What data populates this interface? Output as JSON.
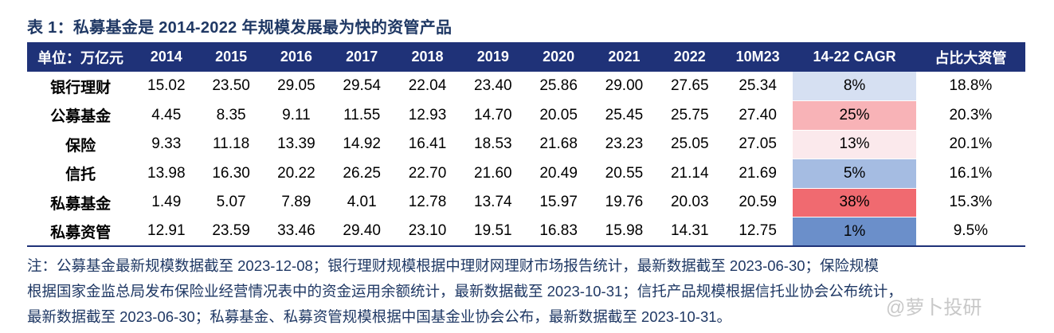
{
  "title": "表 1：私募基金是 2014-2022 年规模发展最为快的资管产品",
  "table": {
    "headers": [
      "单位：万亿元",
      "2014",
      "2015",
      "2016",
      "2017",
      "2018",
      "2019",
      "2020",
      "2021",
      "2022",
      "10M23",
      "14-22 CAGR",
      "占比大资管"
    ],
    "rows": [
      {
        "name": "银行理财",
        "values": [
          "15.02",
          "23.50",
          "29.05",
          "29.54",
          "22.04",
          "23.40",
          "25.86",
          "29.00",
          "27.65",
          "25.34"
        ],
        "cagr": "8%",
        "cagr_color": "#d6e0f2",
        "share": "18.8%"
      },
      {
        "name": "公募基金",
        "values": [
          "4.45",
          "8.35",
          "9.11",
          "11.55",
          "12.93",
          "14.70",
          "20.05",
          "25.45",
          "25.75",
          "27.40"
        ],
        "cagr": "25%",
        "cagr_color": "#f8b3b7",
        "share": "20.3%"
      },
      {
        "name": "保险",
        "values": [
          "9.33",
          "11.18",
          "13.39",
          "14.92",
          "16.41",
          "18.53",
          "21.68",
          "23.23",
          "25.05",
          "27.05"
        ],
        "cagr": "13%",
        "cagr_color": "#fbe9ec",
        "share": "20.1%"
      },
      {
        "name": "信托",
        "values": [
          "13.98",
          "16.30",
          "20.22",
          "26.25",
          "22.70",
          "21.60",
          "20.49",
          "20.55",
          "21.14",
          "21.69"
        ],
        "cagr": "5%",
        "cagr_color": "#a5bce2",
        "share": "16.1%"
      },
      {
        "name": "私募基金",
        "values": [
          "1.49",
          "5.07",
          "7.89",
          "4.01",
          "12.78",
          "13.74",
          "15.97",
          "19.76",
          "20.03",
          "20.59"
        ],
        "cagr": "38%",
        "cagr_color": "#f06a70",
        "share": "15.3%"
      },
      {
        "name": "私募资管",
        "values": [
          "12.91",
          "23.59",
          "33.46",
          "29.40",
          "23.10",
          "19.51",
          "16.83",
          "15.98",
          "14.31",
          "12.75"
        ],
        "cagr": "1%",
        "cagr_color": "#6b8fca",
        "share": "9.5%"
      }
    ]
  },
  "note": {
    "lines": [
      "注：公募基金最新规模数据截至 2023-12-08；银行理财规模根据中理财网理财市场报告统计，最新数据截至 2023-06-30；保险规模",
      "根据国家金监总局发布保险业经营情况表中的资金运用余额统计，最新数据截至 2023-10-31；信托产品规模根据信托业协会公布统计，",
      "最新数据截至 2023-06-30；私募基金、私募资管规模根据中国基金业协会公布，最新数据截至 2023-10-31。"
    ]
  },
  "watermark": "@萝卜投研"
}
